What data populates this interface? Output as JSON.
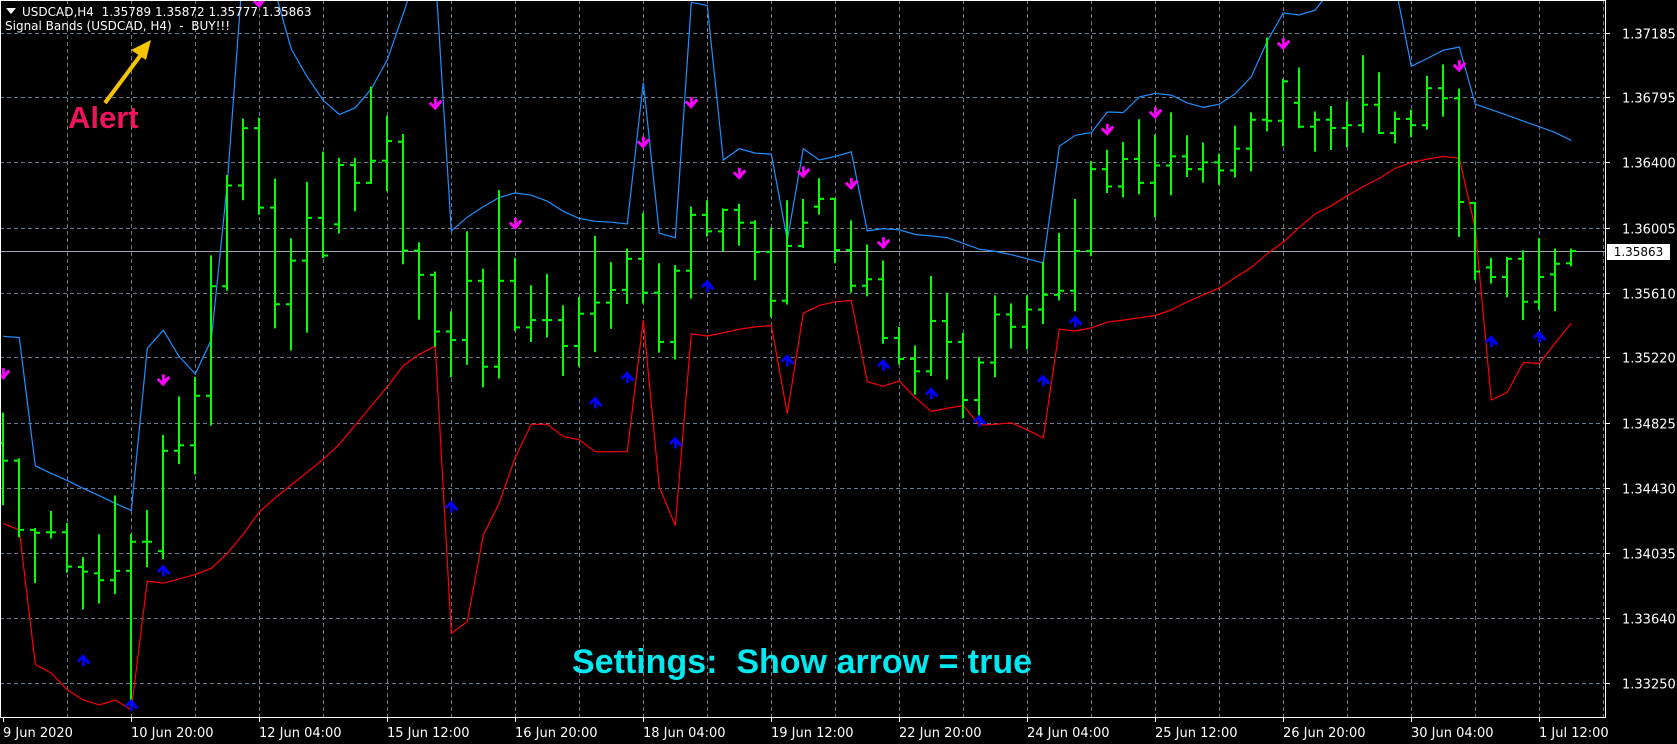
{
  "header": {
    "symbol_line": "USDCAD,H4  1.35789 1.35872 1.35777 1.35863",
    "indicator_line": "Signal Bands (USDCAD, H4)  -  BUY!!!"
  },
  "annotations": {
    "alert_label": "Alert",
    "settings_label": "Settings:  Show arrow = true",
    "alert_color": "#f0145f",
    "settings_color": "#00e8f0",
    "pointer_arrow_color": "#f5c400"
  },
  "chart_data": {
    "type": "bar",
    "bar_style": "ohlc",
    "symbol": "USDCAD",
    "timeframe": "H4",
    "ylim": [
      1.33042,
      1.37383
    ],
    "grid": true,
    "current_price": 1.35863,
    "current_price_label": "1.35863",
    "colors": {
      "bars": "#00ff00",
      "upper_band": "#1e90ff",
      "lower_band": "#ff0000",
      "sell_arrow": "#ff00ff",
      "buy_arrow": "#0000ff",
      "grid": "#6b7a8a",
      "background": "#000000"
    },
    "y_ticks": [
      "1.37185",
      "1.36795",
      "1.36400",
      "1.36005",
      "1.35610",
      "1.35220",
      "1.34825",
      "1.34430",
      "1.34035",
      "1.33640",
      "1.33250"
    ],
    "x_ticks": [
      {
        "bar": 0,
        "label": "9 Jun 2020"
      },
      {
        "bar": 8,
        "label": "10 Jun 20:00"
      },
      {
        "bar": 16,
        "label": "12 Jun 04:00"
      },
      {
        "bar": 24,
        "label": "15 Jun 12:00"
      },
      {
        "bar": 32,
        "label": "16 Jun 20:00"
      },
      {
        "bar": 40,
        "label": "18 Jun 04:00"
      },
      {
        "bar": 48,
        "label": "19 Jun 12:00"
      },
      {
        "bar": 56,
        "label": "22 Jun 20:00"
      },
      {
        "bar": 64,
        "label": "24 Jun 04:00"
      },
      {
        "bar": 72,
        "label": "25 Jun 12:00"
      },
      {
        "bar": 80,
        "label": "26 Jun 20:00"
      },
      {
        "bar": 88,
        "label": "30 Jun 04:00"
      },
      {
        "bar": 96,
        "label": "1 Jul 12:00"
      }
    ],
    "ohlc_fields": [
      "open",
      "high",
      "low",
      "close"
    ],
    "bars": [
      [
        1.347,
        1.34879,
        1.3433,
        1.34594
      ],
      [
        1.34594,
        1.34602,
        1.34136,
        1.34175
      ],
      [
        1.34175,
        1.3418,
        1.3386,
        1.34157
      ],
      [
        1.3416,
        1.34284,
        1.34129,
        1.3416
      ],
      [
        1.3416,
        1.34211,
        1.33922,
        1.33953
      ],
      [
        1.3395,
        1.34004,
        1.33699,
        1.33922
      ],
      [
        1.33912,
        1.34142,
        1.33735,
        1.3387
      ],
      [
        1.3387,
        1.34377,
        1.33792,
        1.33927
      ],
      [
        1.33927,
        1.34144,
        1.33115,
        1.34103
      ],
      [
        1.34103,
        1.34289,
        1.33955,
        1.34103
      ],
      [
        1.34046,
        1.34744,
        1.34004,
        1.34654
      ],
      [
        1.34654,
        1.34977,
        1.34579,
        1.34687
      ],
      [
        1.34687,
        1.35094,
        1.34517,
        1.34987
      ],
      [
        1.34987,
        1.35831,
        1.34812,
        1.3565
      ],
      [
        1.3565,
        1.36317,
        1.35629,
        1.3626
      ],
      [
        1.3626,
        1.36659,
        1.36177,
        1.36607
      ],
      [
        1.36607,
        1.36664,
        1.36089,
        1.36126
      ],
      [
        1.36126,
        1.36296,
        1.35401,
        1.35541
      ],
      [
        1.35541,
        1.35934,
        1.35267,
        1.35805
      ],
      [
        1.35805,
        1.36276,
        1.35375,
        1.36064
      ],
      [
        1.36064,
        1.36459,
        1.35826,
        1.35836
      ],
      [
        1.36025,
        1.36421,
        1.35976,
        1.36384
      ],
      [
        1.36384,
        1.36421,
        1.3611,
        1.36276
      ],
      [
        1.36276,
        1.36853,
        1.36276,
        1.3641
      ],
      [
        1.3641,
        1.36677,
        1.36232,
        1.36529
      ],
      [
        1.36525,
        1.36566,
        1.35789,
        1.35866
      ],
      [
        1.35866,
        1.3591,
        1.35454,
        1.35719
      ],
      [
        1.35719,
        1.35733,
        1.3529,
        1.35376
      ],
      [
        1.35376,
        1.35492,
        1.35105,
        1.35324
      ],
      [
        1.35324,
        1.35977,
        1.3518,
        1.35683
      ],
      [
        1.35683,
        1.3575,
        1.35044,
        1.35163
      ],
      [
        1.35163,
        1.36226,
        1.35097,
        1.35683
      ],
      [
        1.35683,
        1.35816,
        1.35385,
        1.35401
      ],
      [
        1.35401,
        1.3565,
        1.35318,
        1.35445
      ],
      [
        1.35445,
        1.35719,
        1.35346,
        1.35445
      ],
      [
        1.35445,
        1.35528,
        1.35113,
        1.35288
      ],
      [
        1.35288,
        1.35578,
        1.35169,
        1.35484
      ],
      [
        1.35484,
        1.35949,
        1.35257,
        1.35551
      ],
      [
        1.35551,
        1.35789,
        1.35398,
        1.35628
      ],
      [
        1.35628,
        1.35872,
        1.35548,
        1.35816
      ],
      [
        1.35816,
        1.36088,
        1.35551,
        1.35611
      ],
      [
        1.35611,
        1.35783,
        1.35254,
        1.35313
      ],
      [
        1.35313,
        1.35772,
        1.35213,
        1.35744
      ],
      [
        1.35744,
        1.36126,
        1.35581,
        1.36082
      ],
      [
        1.36082,
        1.36165,
        1.35957,
        1.35982
      ],
      [
        1.35982,
        1.36115,
        1.35866,
        1.36112
      ],
      [
        1.36112,
        1.36143,
        1.35902,
        1.36035
      ],
      [
        1.36035,
        1.36043,
        1.35692,
        1.35858
      ],
      [
        1.35858,
        1.35999,
        1.35468,
        1.35562
      ],
      [
        1.35562,
        1.36165,
        1.35545,
        1.35894
      ],
      [
        1.35894,
        1.36173,
        1.35888,
        1.36035
      ],
      [
        1.36132,
        1.36298,
        1.3609,
        1.36179
      ],
      [
        1.36179,
        1.36179,
        1.35797,
        1.35869
      ],
      [
        1.35869,
        1.36043,
        1.35617,
        1.35653
      ],
      [
        1.35653,
        1.35897,
        1.35595,
        1.35692
      ],
      [
        1.35692,
        1.358,
        1.35307,
        1.35337
      ],
      [
        1.35337,
        1.35398,
        1.35182,
        1.3521
      ],
      [
        1.3521,
        1.35285,
        1.35,
        1.35135
      ],
      [
        1.35135,
        1.35706,
        1.35113,
        1.3544
      ],
      [
        1.3544,
        1.35603,
        1.35091,
        1.35313
      ],
      [
        1.35313,
        1.35362,
        1.34856,
        1.34961
      ],
      [
        1.34961,
        1.35216,
        1.3485,
        1.35188
      ],
      [
        1.35188,
        1.35589,
        1.35105,
        1.35479
      ],
      [
        1.35479,
        1.3554,
        1.35279,
        1.35404
      ],
      [
        1.35404,
        1.35589,
        1.35274,
        1.35509
      ],
      [
        1.35509,
        1.35791,
        1.35426,
        1.35598
      ],
      [
        1.35598,
        1.35966,
        1.3557,
        1.35623
      ],
      [
        1.35623,
        1.36173,
        1.35506,
        1.35863
      ],
      [
        1.35863,
        1.364,
        1.35838,
        1.36359
      ],
      [
        1.36359,
        1.3647,
        1.3622,
        1.36254
      ],
      [
        1.36254,
        1.36517,
        1.36193,
        1.3642
      ],
      [
        1.3642,
        1.36655,
        1.36212,
        1.36276
      ],
      [
        1.36276,
        1.36561,
        1.36074,
        1.36381
      ],
      [
        1.36381,
        1.36697,
        1.36207,
        1.36436
      ],
      [
        1.36436,
        1.36558,
        1.36317,
        1.36359
      ],
      [
        1.36359,
        1.36514,
        1.36284,
        1.364
      ],
      [
        1.364,
        1.36447,
        1.3627,
        1.36351
      ],
      [
        1.36351,
        1.36616,
        1.36315,
        1.36483
      ],
      [
        1.36483,
        1.36697,
        1.36351,
        1.36658
      ],
      [
        1.36658,
        1.3715,
        1.36594,
        1.36652
      ],
      [
        1.36652,
        1.36899,
        1.36503,
        1.3689
      ],
      [
        1.3676,
        1.36968,
        1.36613,
        1.36616
      ],
      [
        1.36616,
        1.36702,
        1.3647,
        1.36658
      ],
      [
        1.36658,
        1.36735,
        1.36481,
        1.36608
      ],
      [
        1.36608,
        1.36763,
        1.36497,
        1.36625
      ],
      [
        1.36625,
        1.37043,
        1.36586,
        1.36749
      ],
      [
        1.36749,
        1.3694,
        1.36578,
        1.36578
      ],
      [
        1.36578,
        1.36702,
        1.36522,
        1.36663
      ],
      [
        1.36663,
        1.36713,
        1.36558,
        1.36625
      ],
      [
        1.36625,
        1.36918,
        1.36605,
        1.36849
      ],
      [
        1.36849,
        1.36987,
        1.36683,
        1.36788
      ],
      [
        1.36788,
        1.3684,
        1.35955,
        1.3616
      ],
      [
        1.36154,
        1.36154,
        1.35692,
        1.35739
      ],
      [
        1.35764,
        1.35816,
        1.35672,
        1.35706
      ],
      [
        1.35706,
        1.35822,
        1.35589,
        1.35816
      ],
      [
        1.35816,
        1.35861,
        1.35451,
        1.35556
      ],
      [
        1.35556,
        1.35935,
        1.35512,
        1.35706
      ],
      [
        1.35722,
        1.35872,
        1.35506,
        1.35786
      ],
      [
        1.35789,
        1.35872,
        1.35777,
        1.35863
      ]
    ],
    "upper_band": [
      1.35347,
      1.35339,
      1.34563,
      1.34517,
      1.34473,
      1.34426,
      1.34382,
      1.34336,
      1.34292,
      1.35275,
      1.35383,
      1.35223,
      1.35119,
      1.35326,
      1.36271,
      1.376,
      1.377,
      1.3743,
      1.37085,
      1.36917,
      1.36775,
      1.3669,
      1.36731,
      1.36845,
      1.37021,
      1.373,
      1.376,
      1.3755,
      1.35985,
      1.36068,
      1.36132,
      1.36187,
      1.36215,
      1.36201,
      1.36165,
      1.36104,
      1.3606,
      1.36043,
      1.36038,
      1.36027,
      1.36885,
      1.35971,
      1.35944,
      1.37369,
      1.3735,
      1.36414,
      1.36483,
      1.36456,
      1.3645,
      1.3593,
      1.36483,
      1.36414,
      1.36436,
      1.36464,
      1.35985,
      1.35999,
      1.35991,
      1.35963,
      1.35955,
      1.35944,
      1.3591,
      1.35874,
      1.35861,
      1.35841,
      1.35816,
      1.35791,
      1.36497,
      1.36564,
      1.3658,
      1.36705,
      1.36702,
      1.36796,
      1.36818,
      1.36807,
      1.3676,
      1.36733,
      1.36752,
      1.36816,
      1.36918,
      1.37134,
      1.37305,
      1.37292,
      1.37322,
      1.3745,
      1.376,
      1.377,
      1.376,
      1.3747,
      1.36982,
      1.37029,
      1.37079,
      1.37098,
      1.36752,
      1.36719,
      1.36685,
      1.3665,
      1.36616,
      1.3658,
      1.36533
    ],
    "lower_band": [
      1.34214,
      1.34175,
      1.3336,
      1.33308,
      1.33206,
      1.33145,
      1.33115,
      1.33145,
      1.33085,
      1.33865,
      1.33852,
      1.33878,
      1.33904,
      1.33942,
      1.34033,
      1.34149,
      1.34284,
      1.34369,
      1.34447,
      1.34524,
      1.34602,
      1.34693,
      1.34809,
      1.34925,
      1.35042,
      1.35169,
      1.35238,
      1.35288,
      1.33549,
      1.33619,
      1.34144,
      1.34338,
      1.34615,
      1.34814,
      1.34814,
      1.3474,
      1.3472,
      1.34648,
      1.34648,
      1.34648,
      1.35445,
      1.34435,
      1.342,
      1.35362,
      1.35349,
      1.35368,
      1.3539,
      1.35404,
      1.35412,
      1.34878,
      1.35487,
      1.35534,
      1.35556,
      1.35564,
      1.35072,
      1.35044,
      1.35077,
      1.34975,
      1.34892,
      1.34911,
      1.34928,
      1.34809,
      1.34814,
      1.34823,
      1.34781,
      1.34731,
      1.3539,
      1.35379,
      1.35398,
      1.35432,
      1.35445,
      1.35459,
      1.35473,
      1.35506,
      1.35556,
      1.35598,
      1.35639,
      1.35703,
      1.35764,
      1.35847,
      1.35916,
      1.36007,
      1.36088,
      1.36137,
      1.36198,
      1.36254,
      1.36303,
      1.36364,
      1.364,
      1.3642,
      1.36436,
      1.36425,
      1.35999,
      1.34961,
      1.35008,
      1.35188,
      1.35182,
      1.35307,
      1.35426
    ],
    "arrows": [
      {
        "bar": 0,
        "dir": "down",
        "price": 1.35119
      },
      {
        "bar": 10,
        "dir": "down",
        "price": 1.3508
      },
      {
        "bar": 16,
        "dir": "down",
        "price": 1.3737
      },
      {
        "bar": 27,
        "dir": "down",
        "price": 1.36752
      },
      {
        "bar": 32,
        "dir": "down",
        "price": 1.36027
      },
      {
        "bar": 40,
        "dir": "down",
        "price": 1.36519
      },
      {
        "bar": 43,
        "dir": "down",
        "price": 1.3676
      },
      {
        "bar": 46,
        "dir": "down",
        "price": 1.36331
      },
      {
        "bar": 50,
        "dir": "down",
        "price": 1.36339
      },
      {
        "bar": 53,
        "dir": "down",
        "price": 1.36268
      },
      {
        "bar": 55,
        "dir": "down",
        "price": 1.3591
      },
      {
        "bar": 69,
        "dir": "down",
        "price": 1.36597
      },
      {
        "bar": 72,
        "dir": "down",
        "price": 1.36697
      },
      {
        "bar": 80,
        "dir": "down",
        "price": 1.37115
      },
      {
        "bar": 91,
        "dir": "down",
        "price": 1.36982
      },
      {
        "bar": 5,
        "dir": "up",
        "price": 1.33386
      },
      {
        "bar": 8,
        "dir": "up",
        "price": 1.33115
      },
      {
        "bar": 10,
        "dir": "up",
        "price": 1.33929
      },
      {
        "bar": 28,
        "dir": "up",
        "price": 1.34316
      },
      {
        "bar": 37,
        "dir": "up",
        "price": 1.34947
      },
      {
        "bar": 39,
        "dir": "up",
        "price": 1.35099
      },
      {
        "bar": 42,
        "dir": "up",
        "price": 1.34704
      },
      {
        "bar": 44,
        "dir": "up",
        "price": 1.35653
      },
      {
        "bar": 49,
        "dir": "up",
        "price": 1.35202
      },
      {
        "bar": 55,
        "dir": "up",
        "price": 1.35174
      },
      {
        "bar": 58,
        "dir": "up",
        "price": 1.35003
      },
      {
        "bar": 61,
        "dir": "up",
        "price": 1.34836
      },
      {
        "bar": 65,
        "dir": "up",
        "price": 1.3508
      },
      {
        "bar": 67,
        "dir": "up",
        "price": 1.35437
      },
      {
        "bar": 93,
        "dir": "up",
        "price": 1.35318
      },
      {
        "bar": 96,
        "dir": "up",
        "price": 1.35346
      }
    ]
  }
}
